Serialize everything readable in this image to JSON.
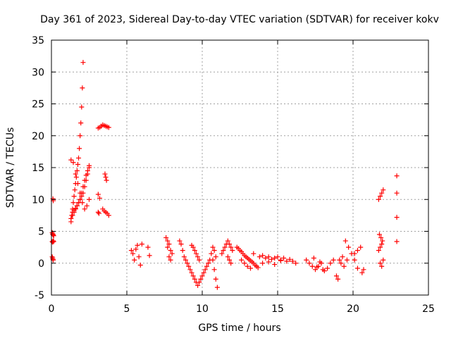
{
  "chart_data": {
    "type": "scatter",
    "title": "Day 361 of 2023, Sidereal Day-to-day VTEC variation (SDTVAR) for receiver kokv",
    "xlabel": "GPS time / hours",
    "ylabel": "SDTVAR / TECUs",
    "xlim": [
      0,
      25
    ],
    "ylim": [
      -5,
      35
    ],
    "grid": true,
    "marker": "+",
    "color": "#ff0000",
    "xticks": [
      {
        "value": 0,
        "label": "0"
      },
      {
        "value": 5,
        "label": "5"
      },
      {
        "value": 10,
        "label": "10"
      },
      {
        "value": 15,
        "label": "15"
      },
      {
        "value": 20,
        "label": "20"
      },
      {
        "value": 25,
        "label": "25"
      }
    ],
    "yticks": [
      {
        "value": -5,
        "label": "-5"
      },
      {
        "value": 0,
        "label": "0"
      },
      {
        "value": 5,
        "label": "5"
      },
      {
        "value": 10,
        "label": "10"
      },
      {
        "value": 15,
        "label": "15"
      },
      {
        "value": 20,
        "label": "20"
      },
      {
        "value": 25,
        "label": "25"
      },
      {
        "value": 30,
        "label": "30"
      },
      {
        "value": 35,
        "label": "35"
      }
    ],
    "series": [
      {
        "name": "SDTVAR",
        "x": [
          0.05,
          0.08,
          0.1,
          0.12,
          0.15,
          0.05,
          0.08,
          0.12,
          0.15,
          0.05,
          0.08,
          0.1,
          0.12,
          0.1,
          0.12,
          1.3,
          1.35,
          1.4,
          1.45,
          1.5,
          1.55,
          1.6,
          1.65,
          1.7,
          1.75,
          1.8,
          1.85,
          1.9,
          1.95,
          2.0,
          2.05,
          2.1,
          1.3,
          1.4,
          1.5,
          1.6,
          1.7,
          1.8,
          1.9,
          2.0,
          2.1,
          2.2,
          2.3,
          2.4,
          2.5,
          1.3,
          1.45,
          1.6,
          1.75,
          1.9,
          2.05,
          2.2,
          2.35,
          2.5,
          1.4,
          1.5,
          1.6,
          1.7,
          1.8,
          1.9,
          2.0,
          2.1,
          2.2,
          2.3,
          2.4,
          2.5,
          3.1,
          3.2,
          3.3,
          3.4,
          3.5,
          3.6,
          3.7,
          3.8,
          3.1,
          3.2,
          3.4,
          3.5,
          3.6,
          3.7,
          3.8,
          3.55,
          3.6,
          3.65,
          3.1,
          3.15,
          5.3,
          5.4,
          5.5,
          5.6,
          5.7,
          5.8,
          5.9,
          6.0,
          6.4,
          6.5,
          7.6,
          7.7,
          7.8,
          7.9,
          8.0,
          7.7,
          7.8,
          7.9,
          8.5,
          8.6,
          8.7,
          8.8,
          8.9,
          9.0,
          9.1,
          9.2,
          9.3,
          9.4,
          9.5,
          9.6,
          9.7,
          9.8,
          9.9,
          10.0,
          10.1,
          10.2,
          10.3,
          10.4,
          10.5,
          9.3,
          9.4,
          9.5,
          9.6,
          9.7,
          9.8,
          10.6,
          10.7,
          10.8,
          10.9,
          11.0,
          10.7,
          10.8,
          10.9,
          11.3,
          11.4,
          11.5,
          11.6,
          11.7,
          11.8,
          11.9,
          12.0,
          11.7,
          11.8,
          11.9,
          12.3,
          12.4,
          12.5,
          12.6,
          12.7,
          12.8,
          12.9,
          13.0,
          13.1,
          13.2,
          13.3,
          13.4,
          13.5,
          13.6,
          13.7,
          12.6,
          12.8,
          13.0,
          13.2,
          13.4,
          13.8,
          14.0,
          14.2,
          14.4,
          14.6,
          14.8,
          15.0,
          15.2,
          15.4,
          15.6,
          14.0,
          14.4,
          14.8,
          15.2,
          15.8,
          16.0,
          16.2,
          16.9,
          17.1,
          17.3,
          17.5,
          17.7,
          17.9,
          18.1,
          18.3,
          18.5,
          18.7,
          17.4,
          17.6,
          17.8,
          18.0,
          18.9,
          19.0,
          19.1,
          19.3,
          19.5,
          19.7,
          19.9,
          20.1,
          20.3,
          20.5,
          20.7,
          19.2,
          19.4,
          19.6,
          20.1,
          20.3,
          20.6,
          21.7,
          21.8,
          21.9,
          22.0,
          21.75,
          21.85,
          21.95,
          21.7,
          21.8,
          21.9,
          22.0,
          21.8,
          21.9,
          22.9,
          22.9,
          22.9,
          22.9
        ],
        "y": [
          4.8,
          4.6,
          4.5,
          4.4,
          4.3,
          3.4,
          3.3,
          3.5,
          3.4,
          1.0,
          0.8,
          0.6,
          0.5,
          10.1,
          9.8,
          6.5,
          7.5,
          8.5,
          9.5,
          10.5,
          11.5,
          12.5,
          13.5,
          14.5,
          15.5,
          16.5,
          18.0,
          20.0,
          22.0,
          24.5,
          27.5,
          31.5,
          7.0,
          7.5,
          8.0,
          8.5,
          9.0,
          9.5,
          10.0,
          10.5,
          11.0,
          12.0,
          13.0,
          14.0,
          15.3,
          16.2,
          15.8,
          14.0,
          12.5,
          11.0,
          9.5,
          8.5,
          9.0,
          10.0,
          8.0,
          8.3,
          8.6,
          9.0,
          9.5,
          10.0,
          11.0,
          12.0,
          13.0,
          13.8,
          14.5,
          15.0,
          21.2,
          21.3,
          21.5,
          21.7,
          21.6,
          21.5,
          21.4,
          21.3,
          10.8,
          10.2,
          8.5,
          8.2,
          8.0,
          7.8,
          7.5,
          14.0,
          13.5,
          13.0,
          8.0,
          7.8,
          2.0,
          1.5,
          0.5,
          2.2,
          2.8,
          1.0,
          -0.3,
          3.0,
          2.5,
          1.2,
          4.0,
          3.5,
          3.0,
          2.0,
          1.5,
          2.5,
          1.0,
          0.5,
          3.5,
          3.0,
          2.0,
          1.0,
          0.5,
          0.0,
          -0.5,
          -1.0,
          -1.5,
          -2.0,
          -2.5,
          -3.0,
          -3.5,
          -3.0,
          -2.5,
          -2.0,
          -1.5,
          -1.0,
          -0.5,
          0.0,
          0.5,
          2.8,
          2.5,
          2.0,
          1.5,
          1.0,
          0.5,
          1.5,
          0.5,
          -1.0,
          -2.5,
          -3.8,
          2.5,
          2.0,
          1.0,
          1.5,
          2.0,
          2.5,
          3.0,
          3.5,
          3.0,
          2.5,
          2.0,
          1.0,
          0.5,
          0.0,
          2.5,
          2.3,
          2.0,
          1.8,
          1.5,
          1.2,
          1.0,
          0.8,
          0.6,
          0.4,
          0.2,
          0.0,
          -0.3,
          -0.5,
          -0.7,
          0.5,
          0.0,
          -0.5,
          -0.8,
          1.5,
          1.0,
          1.2,
          0.8,
          1.0,
          0.6,
          0.8,
          1.0,
          0.5,
          0.8,
          0.3,
          0.0,
          0.2,
          -0.2,
          0.4,
          0.6,
          0.3,
          0.0,
          0.5,
          0.0,
          -0.5,
          -1.0,
          -0.5,
          0.0,
          -1.2,
          -0.8,
          0.0,
          0.5,
          0.8,
          -0.6,
          0.2,
          -1.0,
          -2.0,
          -2.5,
          0.5,
          1.0,
          3.5,
          2.5,
          1.5,
          0.5,
          2.0,
          2.5,
          -1.0,
          0.0,
          -0.5,
          0.5,
          1.5,
          -0.8,
          -1.5,
          10.0,
          10.5,
          11.0,
          11.5,
          4.5,
          4.0,
          3.5,
          2.0,
          2.5,
          3.0,
          0.5,
          0.0,
          -0.5,
          13.7,
          11.0,
          7.2,
          3.4
        ]
      }
    ]
  }
}
